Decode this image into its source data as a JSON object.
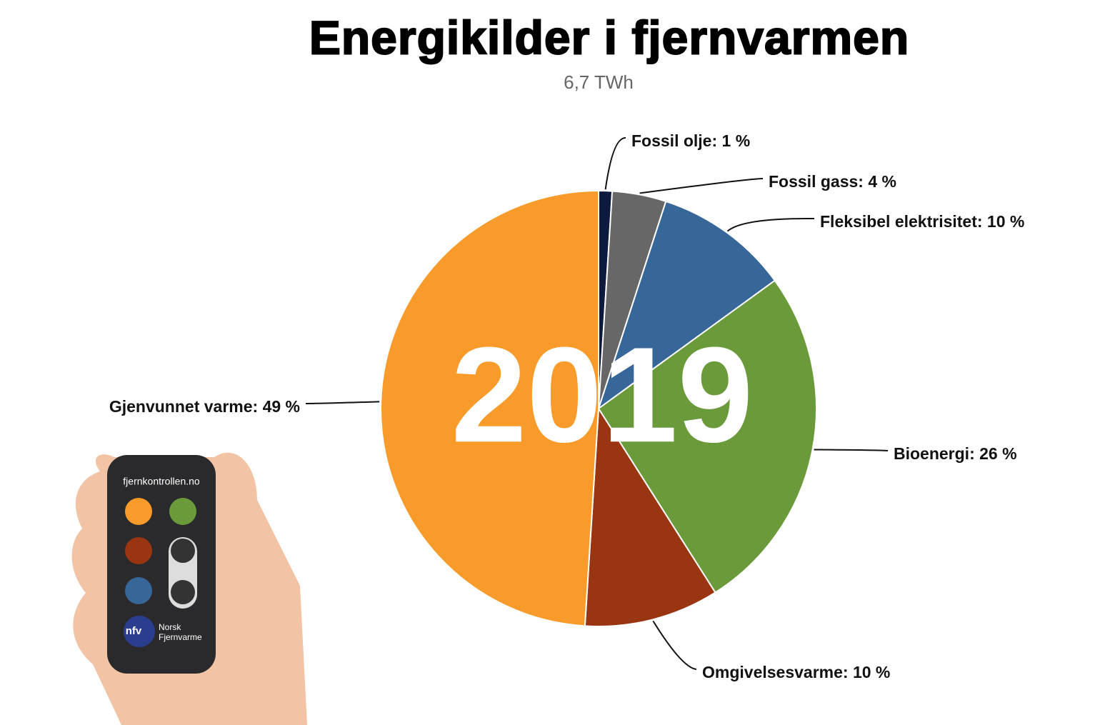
{
  "chart_data": {
    "type": "pie",
    "title": "Energikilder i fjernvarmen",
    "subtitle": "6,7 TWh",
    "annotation": "2019",
    "categories": [
      "Fossil olje",
      "Fossil gass",
      "Fleksibel elektrisitet",
      "Bioenergi",
      "Omgivelsesvarme",
      "Gjenvunnet varme"
    ],
    "values": [
      1,
      4,
      10,
      26,
      10,
      49
    ],
    "value_labels": [
      "Fossil olje: 1 %",
      "Fossil gass: 4 %",
      "Fleksibel elektrisitet: 10 %",
      "Bioenergi: 26 %",
      "Omgivelsesvarme: 10 %",
      "Gjenvunnet varme: 49 %"
    ],
    "colors": [
      "#0e1a3d",
      "#676767",
      "#366798",
      "#6a9a3a",
      "#9a3512",
      "#f99b2a"
    ]
  },
  "image_texts": {
    "remote_url": "fjernkontrollen.no",
    "logo_short": "nfv",
    "logo_line1": "Norsk",
    "logo_line2": "Fjernvarme"
  }
}
